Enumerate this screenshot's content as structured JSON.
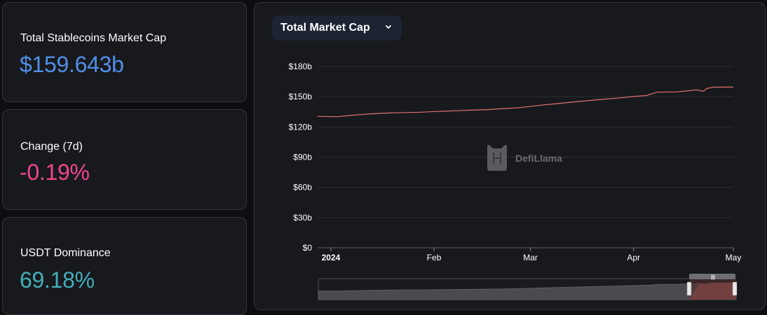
{
  "stats": [
    {
      "label": "Total Stablecoins Market Cap",
      "value": "$159.643b",
      "color": "#4f8fe8"
    },
    {
      "label": "Change (7d)",
      "value": "-0.19%",
      "color": "#f0468f"
    },
    {
      "label": "USDT Dominance",
      "value": "69.18%",
      "color": "#43aeba"
    }
  ],
  "dropdown": {
    "label": "Total Market Cap",
    "icon": "chevron-down-icon"
  },
  "watermark": {
    "text": "DefiLlama",
    "icon": "llama-logo-icon"
  },
  "colors": {
    "line": "#e0736d",
    "grid": "#2c2e33",
    "axis_text": "#ffffff"
  },
  "chart_data": {
    "type": "line",
    "title": "",
    "xlabel": "",
    "ylabel": "",
    "ylim": [
      0,
      180
    ],
    "y_ticks": [
      {
        "value": 0,
        "label": "$0"
      },
      {
        "value": 30,
        "label": "$30b"
      },
      {
        "value": 60,
        "label": "$60b"
      },
      {
        "value": 90,
        "label": "$90b"
      },
      {
        "value": 120,
        "label": "$120b"
      },
      {
        "value": 150,
        "label": "$150b"
      },
      {
        "value": 180,
        "label": "$180b"
      }
    ],
    "x_ticks": [
      {
        "date": "2024-01-01",
        "label": "2024",
        "bold": true
      },
      {
        "date": "2024-02-01",
        "label": "Feb",
        "bold": false
      },
      {
        "date": "2024-03-01",
        "label": "Mar",
        "bold": false
      },
      {
        "date": "2024-04-01",
        "label": "Apr",
        "bold": false
      },
      {
        "date": "2024-05-01",
        "label": "May",
        "bold": false
      }
    ],
    "x_range": [
      "2023-12-28",
      "2024-05-01"
    ],
    "grid": true,
    "series": [
      {
        "color": "#e0736d",
        "points": [
          [
            "2023-12-28",
            130.5
          ],
          [
            "2024-01-03",
            130.2
          ],
          [
            "2024-01-08",
            131.8
          ],
          [
            "2024-01-13",
            133.0
          ],
          [
            "2024-01-18",
            133.8
          ],
          [
            "2024-01-23",
            134.3
          ],
          [
            "2024-01-28",
            134.6
          ],
          [
            "2024-02-02",
            135.4
          ],
          [
            "2024-02-07",
            136.0
          ],
          [
            "2024-02-12",
            136.6
          ],
          [
            "2024-02-17",
            137.2
          ],
          [
            "2024-02-22",
            138.2
          ],
          [
            "2024-02-27",
            139.2
          ],
          [
            "2024-03-03",
            141.2
          ],
          [
            "2024-03-08",
            142.8
          ],
          [
            "2024-03-13",
            144.5
          ],
          [
            "2024-03-18",
            146.0
          ],
          [
            "2024-03-22",
            147.3
          ],
          [
            "2024-03-27",
            148.6
          ],
          [
            "2024-04-01",
            150.2
          ],
          [
            "2024-04-05",
            151.3
          ],
          [
            "2024-04-08",
            154.5
          ],
          [
            "2024-04-14",
            154.8
          ],
          [
            "2024-04-20",
            156.8
          ],
          [
            "2024-04-22",
            155.3
          ],
          [
            "2024-04-23",
            158.2
          ],
          [
            "2024-04-25",
            159.5
          ],
          [
            "2024-05-01",
            159.6
          ]
        ]
      }
    ]
  }
}
